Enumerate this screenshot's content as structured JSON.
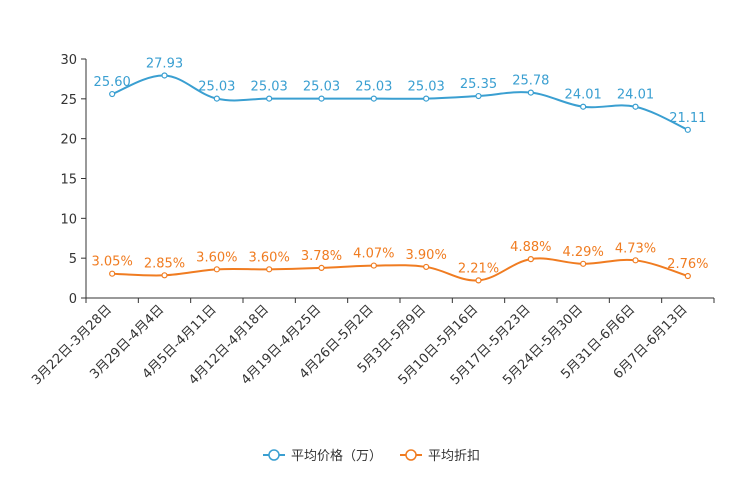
{
  "colors": {
    "price": "#3a9fd1",
    "discount": "#f07c21",
    "axis": "#333333"
  },
  "chart_data": {
    "type": "line",
    "title": "",
    "xlabel": "",
    "ylabel": "",
    "ylim": [
      0,
      30
    ],
    "yticks": [
      0,
      5,
      10,
      15,
      20,
      25,
      30
    ],
    "grid": false,
    "categories": [
      "3月22日-3月28日",
      "3月29日-4月4日",
      "4月5日-4月11日",
      "4月12日-4月18日",
      "4月19日-4月25日",
      "4月26日-5月2日",
      "5月3日-5月9日",
      "5月10日-5月16日",
      "5月17日-5月23日",
      "5月24日-5月30日",
      "5月31日-6月6日",
      "6月7日-6月13日"
    ],
    "series": [
      {
        "name": "平均价格（万）",
        "color": "#3a9fd1",
        "values": [
          25.6,
          27.93,
          25.03,
          25.03,
          25.03,
          25.03,
          25.03,
          25.35,
          25.78,
          24.01,
          24.01,
          21.11
        ],
        "labels": [
          "25.60",
          "27.93",
          "25.03",
          "25.03",
          "25.03",
          "25.03",
          "25.03",
          "25.35",
          "25.78",
          "24.01",
          "24.01",
          "21.11"
        ]
      },
      {
        "name": "平均折扣",
        "color": "#f07c21",
        "values": [
          3.05,
          2.85,
          3.6,
          3.6,
          3.78,
          4.07,
          3.9,
          2.21,
          4.88,
          4.29,
          4.73,
          2.76
        ],
        "labels": [
          "3.05%",
          "2.85%",
          "3.60%",
          "3.60%",
          "3.78%",
          "4.07%",
          "3.90%",
          "2.21%",
          "4.88%",
          "4.29%",
          "4.73%",
          "2.76%"
        ]
      }
    ],
    "legend_position": "bottom-center"
  }
}
